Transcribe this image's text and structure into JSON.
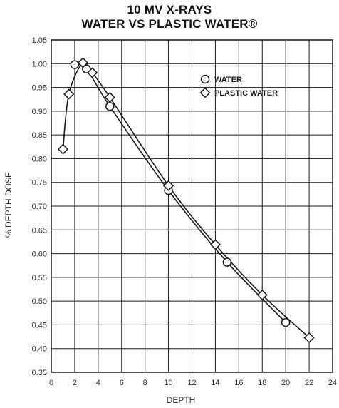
{
  "chart_data": {
    "type": "line",
    "title_line1": "10 MV X-RAYS",
    "title_line2": "WATER VS PLASTIC WATER®",
    "xlabel": "DEPTH",
    "ylabel": "% DEPTH DOSE",
    "xlim": [
      0,
      24
    ],
    "ylim": [
      0.35,
      1.05
    ],
    "x_ticks": [
      "0",
      "2",
      "4",
      "6",
      "8",
      "10",
      "12",
      "14",
      "16",
      "18",
      "20",
      "22",
      "24"
    ],
    "y_ticks": [
      "0.35",
      "0.40",
      "0.45",
      "0.50",
      "0.55",
      "0.60",
      "0.65",
      "0.70",
      "0.75",
      "0.80",
      "0.85",
      "0.90",
      "0.95",
      "1.00",
      "1.05"
    ],
    "grid": true,
    "legend_position": "top-right",
    "series": [
      {
        "name": "WATER",
        "marker": "circle",
        "points": [
          {
            "x": 2.0,
            "y": 0.998
          },
          {
            "x": 3.0,
            "y": 0.989
          },
          {
            "x": 5.0,
            "y": 0.91
          },
          {
            "x": 10.0,
            "y": 0.733
          },
          {
            "x": 15.0,
            "y": 0.582
          },
          {
            "x": 20.0,
            "y": 0.455
          }
        ]
      },
      {
        "name": "PLASTIC WATER",
        "marker": "diamond",
        "points": [
          {
            "x": 1.0,
            "y": 0.82
          },
          {
            "x": 1.5,
            "y": 0.936
          },
          {
            "x": 2.7,
            "y": 1.002
          },
          {
            "x": 3.5,
            "y": 0.981
          },
          {
            "x": 5.0,
            "y": 0.929
          },
          {
            "x": 10.0,
            "y": 0.743
          },
          {
            "x": 14.0,
            "y": 0.619
          },
          {
            "x": 18.0,
            "y": 0.513
          },
          {
            "x": 22.0,
            "y": 0.423
          }
        ]
      }
    ],
    "colors": {
      "line": "#1a1a1a",
      "grid": "#1a1a1a",
      "marker_fill": "#ffffff",
      "text": "#333333"
    }
  }
}
